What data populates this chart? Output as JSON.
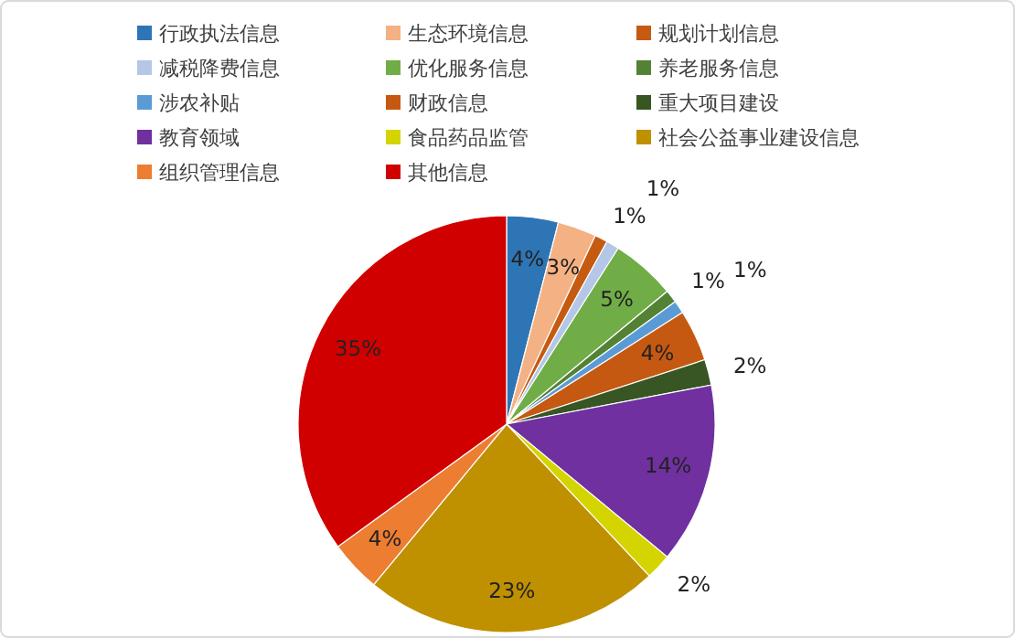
{
  "chart_data": {
    "type": "pie",
    "legend": "top",
    "categories": [
      "行政执法信息",
      "生态环境信息",
      "规划计划信息",
      "减税降费信息",
      "优化服务信息",
      "养老服务信息",
      "涉农补贴",
      "财政信息",
      "重大项目建设",
      "教育领域",
      "食品药品监管",
      "社会公益事业建设信息",
      "组织管理信息",
      "其他信息"
    ],
    "values": [
      4,
      3,
      1,
      1,
      5,
      1,
      1,
      4,
      2,
      14,
      2,
      23,
      4,
      35
    ],
    "value_labels": [
      "4%",
      "3%",
      "1%",
      "1%",
      "5%",
      "1%",
      "1%",
      "4%",
      "2%",
      "14%",
      "2%",
      "23%",
      "4%",
      "35%"
    ],
    "colors": [
      "#2e75b6",
      "#f4b183",
      "#c55a11",
      "#b4c7e7",
      "#70ad47",
      "#548235",
      "#5b9bd5",
      "#c65911",
      "#375623",
      "#7030a0",
      "#d4d400",
      "#bf9000",
      "#ed7d31",
      "#d00000"
    ]
  }
}
